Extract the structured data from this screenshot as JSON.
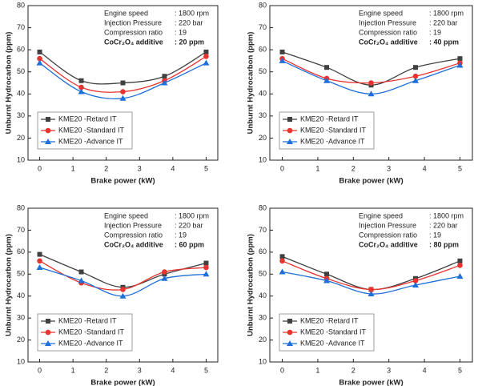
{
  "chart_data": [
    {
      "type": "line",
      "x": [
        0,
        1.25,
        2.5,
        3.75,
        5
      ],
      "xlabel": "Brake power (kW)",
      "ylabel": "Unburnt Hydrocarbon (ppm)",
      "xlim": [
        -0.35,
        5.35
      ],
      "xticks": [
        0,
        1,
        2,
        3,
        4,
        5
      ],
      "ylim": [
        10,
        80
      ],
      "yticks": [
        10,
        20,
        30,
        40,
        50,
        60,
        70,
        80
      ],
      "legend": "lower left",
      "annotations": [
        {
          "label": "Engine speed",
          "value": ": 1800 rpm"
        },
        {
          "label": "Injection Pressure",
          "value": ": 220 bar"
        },
        {
          "label": "Compression ratio",
          "value": ": 19"
        },
        {
          "label": "CoCr₂O₄ additive",
          "value": ": 20 ppm"
        }
      ],
      "series": [
        {
          "name": "KME20 -Retard IT",
          "color": "#404040",
          "marker": "square",
          "values": [
            59,
            46,
            45,
            48,
            59
          ]
        },
        {
          "name": "KME20 -Standard IT",
          "color": "#e8332f",
          "marker": "circle",
          "values": [
            56,
            43,
            41,
            46,
            57
          ]
        },
        {
          "name": "KME20 -Advance IT",
          "color": "#1e6fd9",
          "marker": "triangle",
          "values": [
            54,
            41,
            38,
            45,
            54
          ]
        }
      ]
    },
    {
      "type": "line",
      "x": [
        0,
        1.25,
        2.5,
        3.75,
        5
      ],
      "xlabel": "Brake power (kW)",
      "ylabel": "Unburnt Hydrocarbon (ppm)",
      "xlim": [
        -0.35,
        5.35
      ],
      "xticks": [
        0,
        1,
        2,
        3,
        4,
        5
      ],
      "ylim": [
        10,
        80
      ],
      "yticks": [
        10,
        20,
        30,
        40,
        50,
        60,
        70,
        80
      ],
      "legend": "lower left",
      "annotations": [
        {
          "label": "Engine speed",
          "value": ": 1800 rpm"
        },
        {
          "label": "Injection Pressure",
          "value": ": 220 bar"
        },
        {
          "label": "Compression ratio",
          "value": ": 19"
        },
        {
          "label": "CoCr₂O₄ additive",
          "value": ": 40 ppm"
        }
      ],
      "series": [
        {
          "name": "KME20 -Retard IT",
          "color": "#404040",
          "marker": "square",
          "values": [
            59,
            52,
            44,
            52,
            56
          ]
        },
        {
          "name": "KME20 -Standard IT",
          "color": "#e8332f",
          "marker": "circle",
          "values": [
            56,
            47,
            45,
            48,
            54
          ]
        },
        {
          "name": "KME20 -Advance IT",
          "color": "#1e6fd9",
          "marker": "triangle",
          "values": [
            55,
            46,
            40,
            46,
            53
          ]
        }
      ]
    },
    {
      "type": "line",
      "x": [
        0,
        1.25,
        2.5,
        3.75,
        5
      ],
      "xlabel": "Brake power (kW)",
      "ylabel": "Unburnt Hydrocarbon (ppm)",
      "xlim": [
        -0.35,
        5.35
      ],
      "xticks": [
        0,
        1,
        2,
        3,
        4,
        5
      ],
      "ylim": [
        10,
        80
      ],
      "yticks": [
        10,
        20,
        30,
        40,
        50,
        60,
        70,
        80
      ],
      "legend": "lower left",
      "annotations": [
        {
          "label": "Engine speed",
          "value": ": 1800 rpm"
        },
        {
          "label": "Injection Pressure",
          "value": ": 220 bar"
        },
        {
          "label": "Compression ratio",
          "value": ": 19"
        },
        {
          "label": "CoCr₂O₄ additive",
          "value": ": 60 ppm"
        }
      ],
      "series": [
        {
          "name": "KME20 -Retard IT",
          "color": "#404040",
          "marker": "square",
          "values": [
            59,
            51,
            44,
            50,
            55
          ]
        },
        {
          "name": "KME20 -Standard IT",
          "color": "#e8332f",
          "marker": "circle",
          "values": [
            56,
            46,
            43,
            51,
            53
          ]
        },
        {
          "name": "KME20 -Advance IT",
          "color": "#1e6fd9",
          "marker": "triangle",
          "values": [
            53,
            47,
            40,
            48,
            50
          ]
        }
      ]
    },
    {
      "type": "line",
      "x": [
        0,
        1.25,
        2.5,
        3.75,
        5
      ],
      "xlabel": "Brake power (kW)",
      "ylabel": "Unburnt Hydrocarbon (ppm)",
      "xlim": [
        -0.35,
        5.35
      ],
      "xticks": [
        0,
        1,
        2,
        3,
        4,
        5
      ],
      "ylim": [
        10,
        80
      ],
      "yticks": [
        10,
        20,
        30,
        40,
        50,
        60,
        70,
        80
      ],
      "legend": "lower left",
      "annotations": [
        {
          "label": "Engine speed",
          "value": ": 1800 rpm"
        },
        {
          "label": "Injection Pressure",
          "value": ": 220 bar"
        },
        {
          "label": "Compression ratio",
          "value": ": 19"
        },
        {
          "label": "CoCr₂O₄ additive",
          "value": ": 80 ppm"
        }
      ],
      "series": [
        {
          "name": "KME20 -Retard IT",
          "color": "#404040",
          "marker": "square",
          "values": [
            58,
            50,
            43,
            48,
            56
          ]
        },
        {
          "name": "KME20 -Standard IT",
          "color": "#e8332f",
          "marker": "circle",
          "values": [
            56,
            48,
            43,
            47,
            54
          ]
        },
        {
          "name": "KME20 -Advance IT",
          "color": "#1e6fd9",
          "marker": "triangle",
          "values": [
            51,
            47,
            41,
            45,
            49
          ]
        }
      ]
    }
  ]
}
